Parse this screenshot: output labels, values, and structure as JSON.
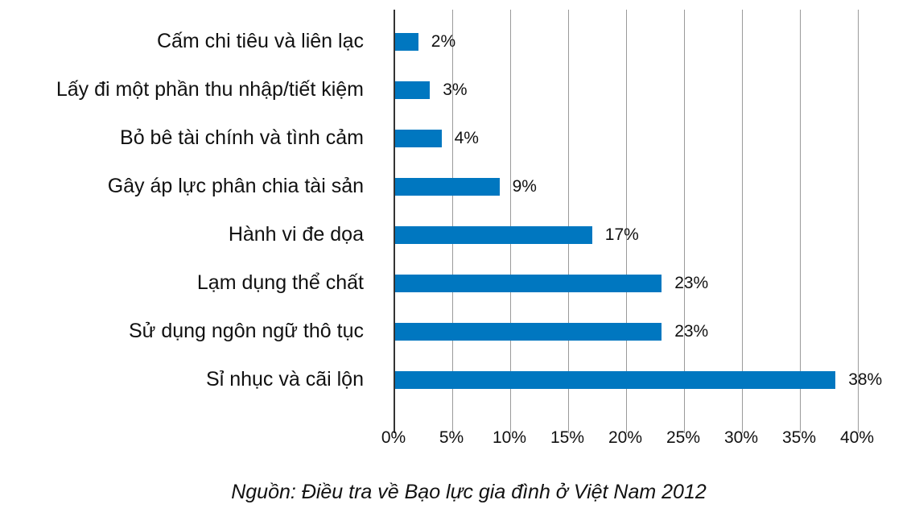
{
  "chart_data": {
    "type": "bar",
    "orientation": "horizontal",
    "title": "",
    "categories": [
      "Cấm chi tiêu và liên lạc",
      "Lấy đi một phần thu nhập/tiết kiệm",
      "Bỏ bê tài chính và tình cảm",
      "Gây áp lực phân chia tài sản",
      "Hành vi đe dọa",
      "Lạm dụng thể chất",
      "Sử dụng ngôn ngữ thô tục",
      "Sỉ nhục và cãi lộn"
    ],
    "values": [
      2,
      3,
      4,
      9,
      17,
      23,
      23,
      38
    ],
    "value_labels": [
      "2%",
      "3%",
      "4%",
      "9%",
      "17%",
      "23%",
      "23%",
      "38%"
    ],
    "xlabel": "",
    "ylabel": "",
    "xlim": [
      0,
      40
    ],
    "x_ticks": [
      "0%",
      "5%",
      "10%",
      "15%",
      "20%",
      "25%",
      "30%",
      "35%",
      "40%"
    ],
    "grid": true,
    "legend": null,
    "bar_color": "#0077c0",
    "source": "Nguồn: Điều tra về Bạo lực gia đình ở Việt Nam 2012"
  }
}
